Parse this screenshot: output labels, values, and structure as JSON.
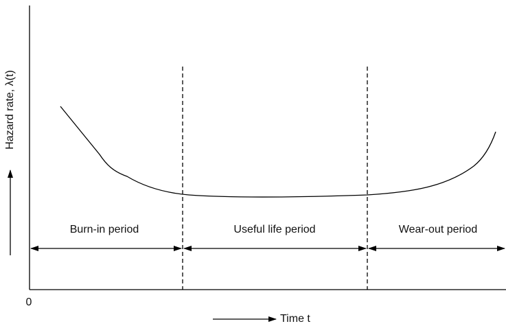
{
  "y_axis_label": "Hazard rate, λ(t)",
  "x_axis_label": "Time t",
  "origin_label": "0",
  "periods": [
    "Burn-in period",
    "Useful life period",
    "Wear-out period"
  ]
}
